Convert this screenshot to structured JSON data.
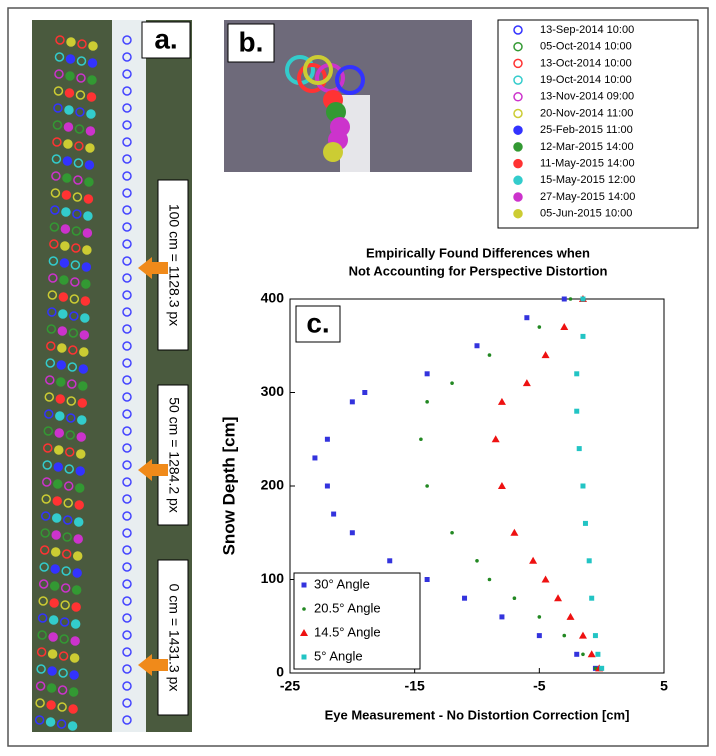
{
  "panel_a": {
    "label": "a.",
    "annotations": [
      "100 cm = 1128.3 px",
      "50 cm = 1284.2 px",
      "0 cm = 1431.3 px"
    ]
  },
  "panel_b": {
    "label": "b."
  },
  "legend": {
    "entries": [
      {
        "label": "13-Sep-2014 10:00",
        "color": "#3333ff",
        "filled": false
      },
      {
        "label": "05-Oct-2014 10:00",
        "color": "#339933",
        "filled": false
      },
      {
        "label": "13-Oct-2014 10:00",
        "color": "#ff3333",
        "filled": false
      },
      {
        "label": "19-Oct-2014 10:00",
        "color": "#33cccc",
        "filled": false
      },
      {
        "label": "13-Nov-2014 09:00",
        "color": "#cc33cc",
        "filled": false
      },
      {
        "label": "20-Nov-2014 11:00",
        "color": "#cccc33",
        "filled": false
      },
      {
        "label": "25-Feb-2015 11:00",
        "color": "#3333ff",
        "filled": true
      },
      {
        "label": "12-Mar-2015 14:00",
        "color": "#339933",
        "filled": true
      },
      {
        "label": "11-May-2015 14:00",
        "color": "#ff3333",
        "filled": true
      },
      {
        "label": "15-May-2015 12:00",
        "color": "#33cccc",
        "filled": true
      },
      {
        "label": "27-May-2015 14:00",
        "color": "#cc33cc",
        "filled": true
      },
      {
        "label": "05-Jun-2015 10:00",
        "color": "#cccc33",
        "filled": true
      }
    ]
  },
  "chart_data": {
    "type": "scatter",
    "panel_label": "c.",
    "title": [
      "Empirically Found Differences when",
      "Not Accounting for Perspective Distortion"
    ],
    "xlabel": "Eye Measurement - No Distortion Correction [cm]",
    "ylabel": "Snow Depth [cm]",
    "xlim": [
      -25,
      5
    ],
    "ylim": [
      0,
      400
    ],
    "xticks": [
      -25,
      -15,
      -5,
      5
    ],
    "yticks": [
      0,
      100,
      200,
      300,
      400
    ],
    "legend": "lower left",
    "series": [
      {
        "name": "30° Angle",
        "color": "#3333dd",
        "marker": "square",
        "x": [
          -3,
          -6,
          -10,
          -14,
          -19,
          -20,
          -22,
          -23,
          -22,
          -21.5,
          -20,
          -17,
          -14,
          -11,
          -8,
          -5,
          -2,
          -0.5
        ],
        "y": [
          400,
          380,
          350,
          320,
          300,
          290,
          250,
          230,
          200,
          170,
          150,
          120,
          100,
          80,
          60,
          40,
          20,
          5
        ]
      },
      {
        "name": "20.5° Angle",
        "color": "#228822",
        "marker": "dot",
        "x": [
          -2.5,
          -5,
          -9,
          -12,
          -14,
          -14.5,
          -14,
          -12,
          -10,
          -9,
          -7,
          -5,
          -3,
          -1.5,
          -0.5
        ],
        "y": [
          400,
          370,
          340,
          310,
          290,
          250,
          200,
          150,
          120,
          100,
          80,
          60,
          40,
          20,
          5
        ]
      },
      {
        "name": "14.5° Angle",
        "color": "#ee1111",
        "marker": "triangle",
        "x": [
          -1.5,
          -3,
          -4.5,
          -6,
          -8,
          -8.5,
          -8,
          -7,
          -5.5,
          -4.5,
          -3.5,
          -2.5,
          -1.5,
          -0.8,
          -0.2
        ],
        "y": [
          400,
          370,
          340,
          310,
          290,
          250,
          200,
          150,
          120,
          100,
          80,
          60,
          40,
          20,
          5
        ]
      },
      {
        "name": "5° Angle",
        "color": "#22c4c4",
        "marker": "square",
        "x": [
          -1.5,
          -1.5,
          -2,
          -2,
          -1.8,
          -1.5,
          -1.3,
          -1,
          -0.8,
          -0.5,
          -0.3,
          0
        ],
        "y": [
          400,
          360,
          320,
          280,
          240,
          200,
          160,
          120,
          80,
          40,
          20,
          5
        ]
      }
    ]
  }
}
